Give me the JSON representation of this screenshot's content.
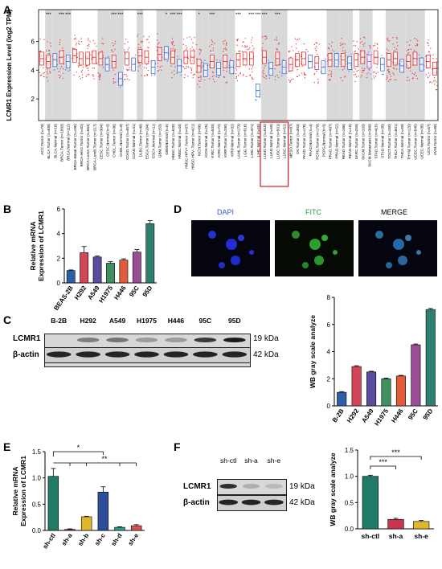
{
  "figure": {
    "panels": {
      "a": "A",
      "b": "B",
      "c": "C",
      "d": "D",
      "e": "E",
      "f": "F"
    }
  },
  "colors": {
    "tumor": "#e41a1c",
    "normal": "#2b5fd9",
    "metastasis": "#a64fd0",
    "grey_band": "#d9d9d9",
    "beas2b": "#2d5fa8",
    "h292": "#d2465a",
    "a549": "#5a4c9e",
    "h1975": "#3f8f5f",
    "h446": "#e25b3a",
    "c95": "#9a4f94",
    "d95": "#2f7f6f",
    "shctl": "#1f7a66",
    "sha": "#c9344f",
    "shb": "#e2b62c",
    "shc": "#2f4e9a",
    "shd": "#2a9d8f",
    "she": "#d9534f"
  },
  "panel_a": {
    "ylabel": "LCMR1 Expression Level (log2 TPM)",
    "y_ticks": [
      "2",
      "4",
      "6"
    ],
    "top_marks": [
      "***",
      "***",
      "***",
      "***",
      "***",
      "***",
      "*",
      "***",
      "***",
      "*",
      "***",
      "***",
      "***",
      "***",
      "***",
      "***"
    ],
    "categories": [
      "ACC.Tumor (n=79)",
      "BLCA.Tumor (n=408)",
      "BLCA.Normal (n=19)",
      "BRCA.Tumor (n=1093)",
      "BRCA.Normal (n=112)",
      "BRCA-Basal.Tumor (n=190)",
      "BRCA-Her2.Tumor (n=82)",
      "BRCA-LumA.Tumor (n=564)",
      "BRCA-LumB.Tumor (n=217)",
      "CESC.Tumor (n=304)",
      "CESC.Normal (n=3)",
      "CHOL.Tumor (n=36)",
      "CHOL.Normal (n=9)",
      "COAD.Tumor (n=457)",
      "COAD.Normal (n=41)",
      "DLBC.Tumor (n=48)",
      "ESCA.Tumor (n=184)",
      "ESCA.Normal (n=11)",
      "GBM.Tumor (n=153)",
      "GBM.Normal (n=5)",
      "HNSC.Tumor (n=520)",
      "HNSC.Normal (n=44)",
      "HNSC-HPV+.Tumor (n=97)",
      "HNSC-HPV-.Tumor (n=421)",
      "KICH.Tumor (n=66)",
      "KICH.Normal (n=25)",
      "KIRC.Tumor (n=533)",
      "KIRC.Normal (n=72)",
      "KIRP.Tumor (n=290)",
      "KIRP.Normal (n=32)",
      "LAML.Tumor (n=173)",
      "LGG.Tumor (n=516)",
      "LIHC.Tumor (n=371)",
      "LIHC.Normal (n=50)",
      "LUAD.Tumor (n=515)",
      "LUAD.Normal (n=59)",
      "LUSC.Tumor (n=501)",
      "LUSC.Normal (n=51)",
      "MESO.Tumor (n=87)",
      "OV.Tumor (n=303)",
      "PAAD.Tumor (n=178)",
      "PAAD.Normal (n=4)",
      "PCPG.Tumor (n=179)",
      "PCPG.Normal (n=3)",
      "PRAD.Tumor (n=497)",
      "PRAD.Normal (n=52)",
      "READ.Tumor (n=166)",
      "READ.Normal (n=10)",
      "SARC.Tumor (n=259)",
      "SKCM.Tumor (n=103)",
      "SKCM.Metastasis (n=368)",
      "STAD.Tumor (n=415)",
      "STAD.Normal (n=35)",
      "TGCT.Tumor (n=150)",
      "THCA.Tumor (n=501)",
      "THCA.Normal (n=59)",
      "THYM.Tumor (n=120)",
      "UCEC.Tumor (n=545)",
      "UCEC.Normal (n=35)",
      "UCS.Tumor (n=57)",
      "UVM.Tumor (n=80)"
    ],
    "grey_bands": [
      1,
      2,
      3,
      4,
      9,
      10,
      11,
      12,
      15,
      18,
      19,
      20,
      21,
      24,
      25,
      26,
      27,
      28,
      29,
      34,
      35,
      36,
      37,
      44,
      45,
      46,
      47,
      49,
      50,
      53,
      54,
      55,
      56,
      57,
      58
    ],
    "boxed": [
      34,
      35,
      36,
      37
    ]
  },
  "panel_b": {
    "ylabel": "Relative mRNA Expression of LCMR1",
    "y_ticks": [
      "0",
      "2",
      "4",
      "6"
    ]
  },
  "panel_c": {
    "lanes": [
      "B-2B",
      "H292",
      "A549",
      "H1975",
      "H446",
      "95C",
      "95D"
    ],
    "rows": [
      {
        "name": "LCMR1",
        "kda": "19 kDa"
      },
      {
        "name": "β-actin",
        "kda": "42 kDa"
      }
    ]
  },
  "panel_d": {
    "channels": [
      "DAPI",
      "FITC",
      "MERGE"
    ],
    "chart_ylabel": "WB gray scale analyze",
    "y_ticks": [
      "0",
      "2",
      "4",
      "6",
      "8"
    ]
  },
  "panel_e": {
    "ylabel": "Relative mRNA Expression of LCMR1",
    "y_ticks": [
      "0.0",
      "0.5",
      "1.0",
      "1.5"
    ],
    "sig": [
      "*",
      "**"
    ]
  },
  "panel_f": {
    "lanes": [
      "sh-ctl",
      "sh-a",
      "sh-e"
    ],
    "rows": [
      {
        "name": "LCMR1",
        "kda": "19 kDa"
      },
      {
        "name": "β-actin",
        "kda": "42 kDa"
      }
    ],
    "chart_ylabel": "WB gray scale analyze",
    "y_ticks": [
      "0.0",
      "0.5",
      "1.0",
      "1.5"
    ],
    "sig": [
      "***",
      "***"
    ]
  },
  "chart_data": [
    {
      "type": "bar",
      "categories": [
        "BEAS-2B",
        "H292",
        "A549",
        "H1975",
        "H446",
        "95C",
        "95D"
      ],
      "values": [
        1.0,
        2.45,
        2.1,
        1.6,
        1.85,
        2.5,
        4.8
      ],
      "errors": [
        0.05,
        0.5,
        0.08,
        0.12,
        0.1,
        0.2,
        0.25
      ],
      "ylabel": "Relative mRNA Expression of LCMR1",
      "ylim": [
        0,
        6
      ]
    },
    {
      "type": "bar",
      "categories": [
        "B-2B",
        "H292",
        "A549",
        "H1975",
        "H446",
        "95C",
        "95D"
      ],
      "values": [
        1.0,
        2.9,
        2.5,
        2.0,
        2.2,
        4.5,
        7.1
      ],
      "errors": [
        0.05,
        0.06,
        0.05,
        0.05,
        0.05,
        0.06,
        0.08
      ],
      "ylabel": "WB gray scale analyze",
      "ylim": [
        0,
        8
      ]
    },
    {
      "type": "bar",
      "categories": [
        "sh-ctl",
        "sh-a",
        "sh-b",
        "sh-c",
        "sh-d",
        "sh-e"
      ],
      "values": [
        1.03,
        0.02,
        0.26,
        0.73,
        0.06,
        0.09
      ],
      "errors": [
        0.15,
        0.01,
        0.01,
        0.1,
        0.01,
        0.02
      ],
      "ylabel": "Relative mRNA Expression of LCMR1",
      "ylim": [
        0,
        1.5
      ]
    },
    {
      "type": "bar",
      "categories": [
        "sh-ctl",
        "sh-a",
        "sh-e"
      ],
      "values": [
        1.0,
        0.18,
        0.14
      ],
      "errors": [
        0.02,
        0.02,
        0.02
      ],
      "ylabel": "WB gray scale analyze",
      "ylim": [
        0,
        1.5
      ]
    }
  ]
}
